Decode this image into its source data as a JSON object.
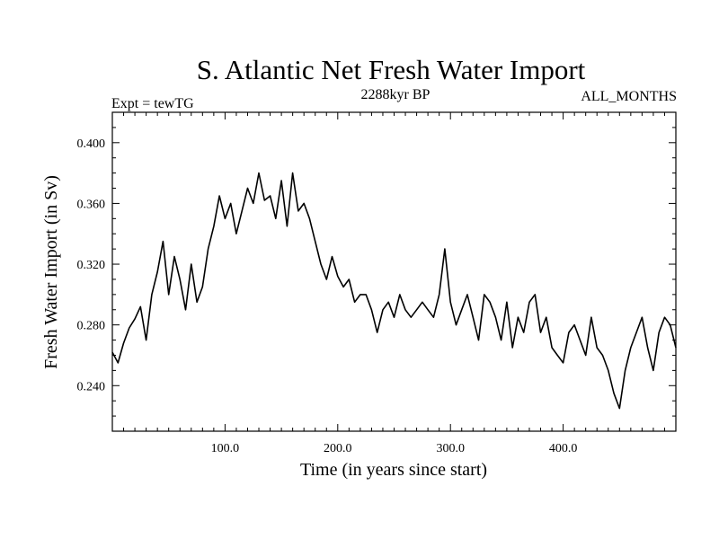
{
  "chart_data": {
    "type": "line",
    "title": "S. Atlantic Net Fresh Water Import",
    "subtitle_left": "Expt = tewTG",
    "subtitle_center": "2288kyr BP",
    "subtitle_right": "ALL_MONTHS",
    "xlabel": "Time (in years since start)",
    "ylabel": "Fresh Water Import (in Sv)",
    "xlim": [
      0,
      500
    ],
    "ylim": [
      0.21,
      0.42
    ],
    "x_ticks": [
      100,
      200,
      300,
      400
    ],
    "x_tick_labels": [
      "100.0",
      "200.0",
      "300.0",
      "400.0"
    ],
    "y_ticks": [
      0.24,
      0.28,
      0.32,
      0.36,
      0.4
    ],
    "y_tick_labels": [
      "0.240",
      "0.280",
      "0.320",
      "0.360",
      "0.400"
    ],
    "grid": false,
    "series": [
      {
        "name": "Fresh Water Import",
        "color": "#000000",
        "x": [
          0,
          5,
          10,
          15,
          20,
          25,
          30,
          35,
          40,
          45,
          50,
          55,
          60,
          65,
          70,
          75,
          80,
          85,
          90,
          95,
          100,
          105,
          110,
          115,
          120,
          125,
          130,
          135,
          140,
          145,
          150,
          155,
          160,
          165,
          170,
          175,
          180,
          185,
          190,
          195,
          200,
          205,
          210,
          215,
          220,
          225,
          230,
          235,
          240,
          245,
          250,
          255,
          260,
          265,
          270,
          275,
          280,
          285,
          290,
          295,
          300,
          305,
          310,
          315,
          320,
          325,
          330,
          335,
          340,
          345,
          350,
          355,
          360,
          365,
          370,
          375,
          380,
          385,
          390,
          395,
          400,
          405,
          410,
          415,
          420,
          425,
          430,
          435,
          440,
          445,
          450,
          455,
          460,
          465,
          470,
          475,
          480,
          485,
          490,
          495,
          500
        ],
        "values": [
          0.262,
          0.255,
          0.268,
          0.278,
          0.284,
          0.292,
          0.27,
          0.3,
          0.315,
          0.335,
          0.3,
          0.325,
          0.31,
          0.29,
          0.32,
          0.295,
          0.305,
          0.33,
          0.345,
          0.365,
          0.35,
          0.36,
          0.34,
          0.355,
          0.37,
          0.36,
          0.38,
          0.362,
          0.365,
          0.35,
          0.375,
          0.345,
          0.38,
          0.355,
          0.36,
          0.35,
          0.335,
          0.32,
          0.31,
          0.325,
          0.312,
          0.305,
          0.31,
          0.295,
          0.3,
          0.3,
          0.29,
          0.275,
          0.29,
          0.295,
          0.285,
          0.3,
          0.29,
          0.285,
          0.29,
          0.295,
          0.29,
          0.285,
          0.3,
          0.33,
          0.295,
          0.28,
          0.29,
          0.3,
          0.285,
          0.27,
          0.3,
          0.295,
          0.285,
          0.27,
          0.295,
          0.265,
          0.285,
          0.275,
          0.295,
          0.3,
          0.275,
          0.285,
          0.265,
          0.26,
          0.255,
          0.275,
          0.28,
          0.27,
          0.26,
          0.285,
          0.265,
          0.26,
          0.25,
          0.235,
          0.225,
          0.25,
          0.265,
          0.275,
          0.285,
          0.265,
          0.25,
          0.275,
          0.285,
          0.28,
          0.265
        ]
      }
    ]
  }
}
